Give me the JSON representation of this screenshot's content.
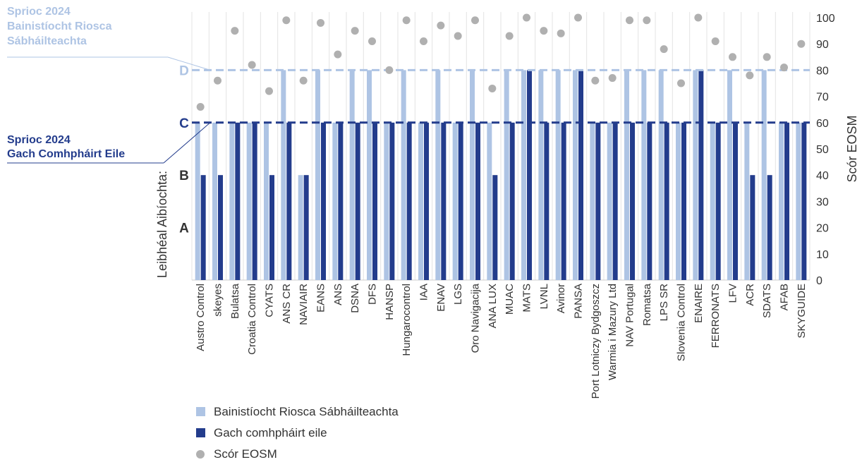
{
  "chart_data": {
    "type": "bar",
    "colors": {
      "safety": "#aec4e4",
      "other": "#233c8c",
      "score": "#b0b0b0",
      "target_safety": "#aec4e4",
      "target_other": "#233c8c",
      "axis_text": "#333333"
    },
    "categories": [
      "Austro Control",
      "skeyes",
      "Bulatsa",
      "Croatia Control",
      "CYATS",
      "ANS CR",
      "NAVIAIR",
      "EANS",
      "ANS",
      "DSNA",
      "DFS",
      "HANSP",
      "Hungarocontrol",
      "IAA",
      "ENAV",
      "LGS",
      "Oro Navigacija",
      "ANA LUX",
      "MUAC",
      "MATS",
      "LVNL",
      "Avinor",
      "PANSA",
      "Port Lotniczy Bydgoszcz",
      "Warmia i Mazury Ltd",
      "NAV Portugal",
      "Romatsa",
      "LPS SR",
      "Slovenia Control",
      "ENAIRE",
      "FERRONATS",
      "LFV",
      "ACR",
      "SDATS",
      "AFAB",
      "SKYGUIDE"
    ],
    "series": [
      {
        "key": "safety",
        "name": "Bainistíocht Riosca Sábháilteachta",
        "axis": "left",
        "values": [
          60,
          60,
          60,
          60,
          60,
          80,
          40,
          80,
          60,
          80,
          80,
          60,
          80,
          60,
          80,
          60,
          80,
          60,
          80,
          80,
          80,
          80,
          80,
          60,
          60,
          80,
          80,
          80,
          60,
          80,
          60,
          80,
          60,
          80,
          60,
          60
        ]
      },
      {
        "key": "other",
        "name": "Gach comhpháirt eile",
        "axis": "left",
        "values": [
          40,
          40,
          60,
          60,
          40,
          60,
          40,
          60,
          60,
          60,
          60,
          60,
          60,
          60,
          60,
          60,
          60,
          40,
          60,
          80,
          60,
          60,
          80,
          60,
          60,
          60,
          60,
          60,
          60,
          80,
          60,
          60,
          40,
          40,
          60,
          60
        ]
      },
      {
        "key": "score",
        "name": "Scór EOSM",
        "axis": "right",
        "values": [
          66,
          76,
          95,
          82,
          72,
          99,
          76,
          98,
          86,
          95,
          91,
          80,
          99,
          91,
          97,
          93,
          99,
          73,
          93,
          100,
          95,
          94,
          100,
          76,
          77,
          99,
          99,
          88,
          75,
          100,
          91,
          85,
          78,
          85,
          81,
          90
        ]
      }
    ],
    "left_axis": {
      "label": "Leibhéal Aibíochta:",
      "ticks": [
        {
          "label": "A",
          "value": 20
        },
        {
          "label": "B",
          "value": 40
        },
        {
          "label": "C",
          "value": 60
        },
        {
          "label": "D",
          "value": 80
        }
      ],
      "ylim": [
        0,
        100
      ]
    },
    "right_axis": {
      "label": "Scór EOSM",
      "ticks": [
        "0",
        "10",
        "20",
        "30",
        "40",
        "50",
        "60",
        "70",
        "80",
        "90",
        "100"
      ],
      "ylim": [
        0,
        100
      ]
    },
    "targets": [
      {
        "key": "target_safety",
        "value": 80,
        "annotation": [
          "Sprioc 2024",
          "Bainistíocht Riosca",
          "Sábháilteachta"
        ]
      },
      {
        "key": "target_other",
        "value": 60,
        "annotation": [
          "Sprioc 2024",
          "Gach Comhpháirt Eile"
        ]
      }
    ],
    "legend": {
      "placement": "bottom-left"
    }
  }
}
